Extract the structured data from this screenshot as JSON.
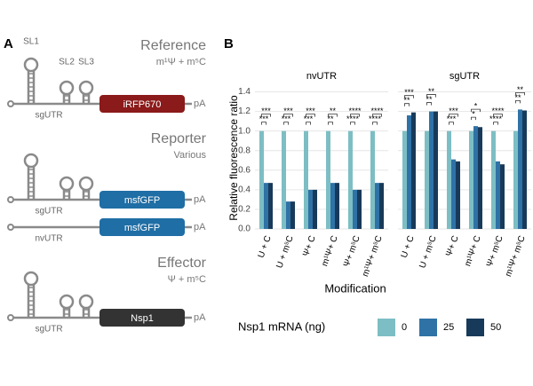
{
  "diagram": {
    "panel_label": "A",
    "constructs": [
      {
        "title": "Reference",
        "subtitle": "m¹Ψ + m⁵C",
        "loop_labels": [
          "SL1",
          "SL2",
          "SL3"
        ],
        "lines": [
          {
            "utr": "sgUTR",
            "gene": "iRFP670",
            "tail": "pA"
          }
        ]
      },
      {
        "title": "Reporter",
        "subtitle": "Various",
        "lines": [
          {
            "utr": "sgUTR",
            "gene": "msfGFP",
            "tail": "pA"
          },
          {
            "utr": "nvUTR",
            "gene": "msfGFP",
            "tail": "pA"
          }
        ]
      },
      {
        "title": "Effector",
        "subtitle": "Ψ + m⁵C",
        "lines": [
          {
            "utr": "sgUTR",
            "gene": "Nsp1",
            "tail": "pA"
          }
        ]
      }
    ]
  },
  "chart_data": {
    "type": "bar",
    "panel_label": "B",
    "ylabel": "Relative fluorescence ratio",
    "xlabel": "Modification",
    "legend_title": "Nsp1 mRNA (ng)",
    "ylim": [
      0,
      1.45
    ],
    "yticks": [
      {
        "value": 0,
        "label": "0.0"
      },
      0.2,
      0.4,
      0.6,
      0.8,
      {
        "value": 1,
        "label": "1.0"
      },
      1.2,
      1.4
    ],
    "grid": true,
    "categories": [
      "U + C",
      "U + m⁵C",
      "Ψ+ C",
      "m¹Ψ+ C",
      "Ψ+ m⁵C",
      "m¹Ψ+ m⁵C"
    ],
    "series": [
      {
        "name": "0",
        "color": "#7dbec4"
      },
      {
        "name": "25",
        "color": "#2f72a6"
      },
      {
        "name": "50",
        "color": "#183a5a"
      }
    ],
    "facets": [
      {
        "title": "nvUTR",
        "values": [
          [
            1.0,
            1.0,
            1.0,
            1.0,
            1.0,
            1.0
          ],
          [
            0.47,
            0.28,
            0.4,
            0.47,
            0.4,
            0.47
          ],
          [
            0.47,
            0.28,
            0.4,
            0.47,
            0.4,
            0.47
          ]
        ],
        "significance": [
          [
            "***",
            "***"
          ],
          [
            "***",
            "***"
          ],
          [
            "***",
            "***"
          ],
          [
            "**",
            "**"
          ],
          [
            "****",
            "****"
          ],
          [
            "****",
            "****"
          ]
        ]
      },
      {
        "title": "sgUTR",
        "values": [
          [
            1.0,
            1.0,
            1.0,
            1.0,
            1.0,
            1.0
          ],
          [
            1.16,
            1.2,
            0.71,
            1.05,
            0.69,
            1.22
          ],
          [
            1.19,
            1.2,
            0.69,
            1.04,
            0.66,
            1.21
          ]
        ],
        "significance": [
          [
            "**",
            "***"
          ],
          [
            "**",
            "**"
          ],
          [
            "***",
            "***"
          ],
          [
            "*",
            "*"
          ],
          [
            "****",
            "****"
          ],
          [
            "**",
            "**"
          ]
        ]
      }
    ]
  }
}
